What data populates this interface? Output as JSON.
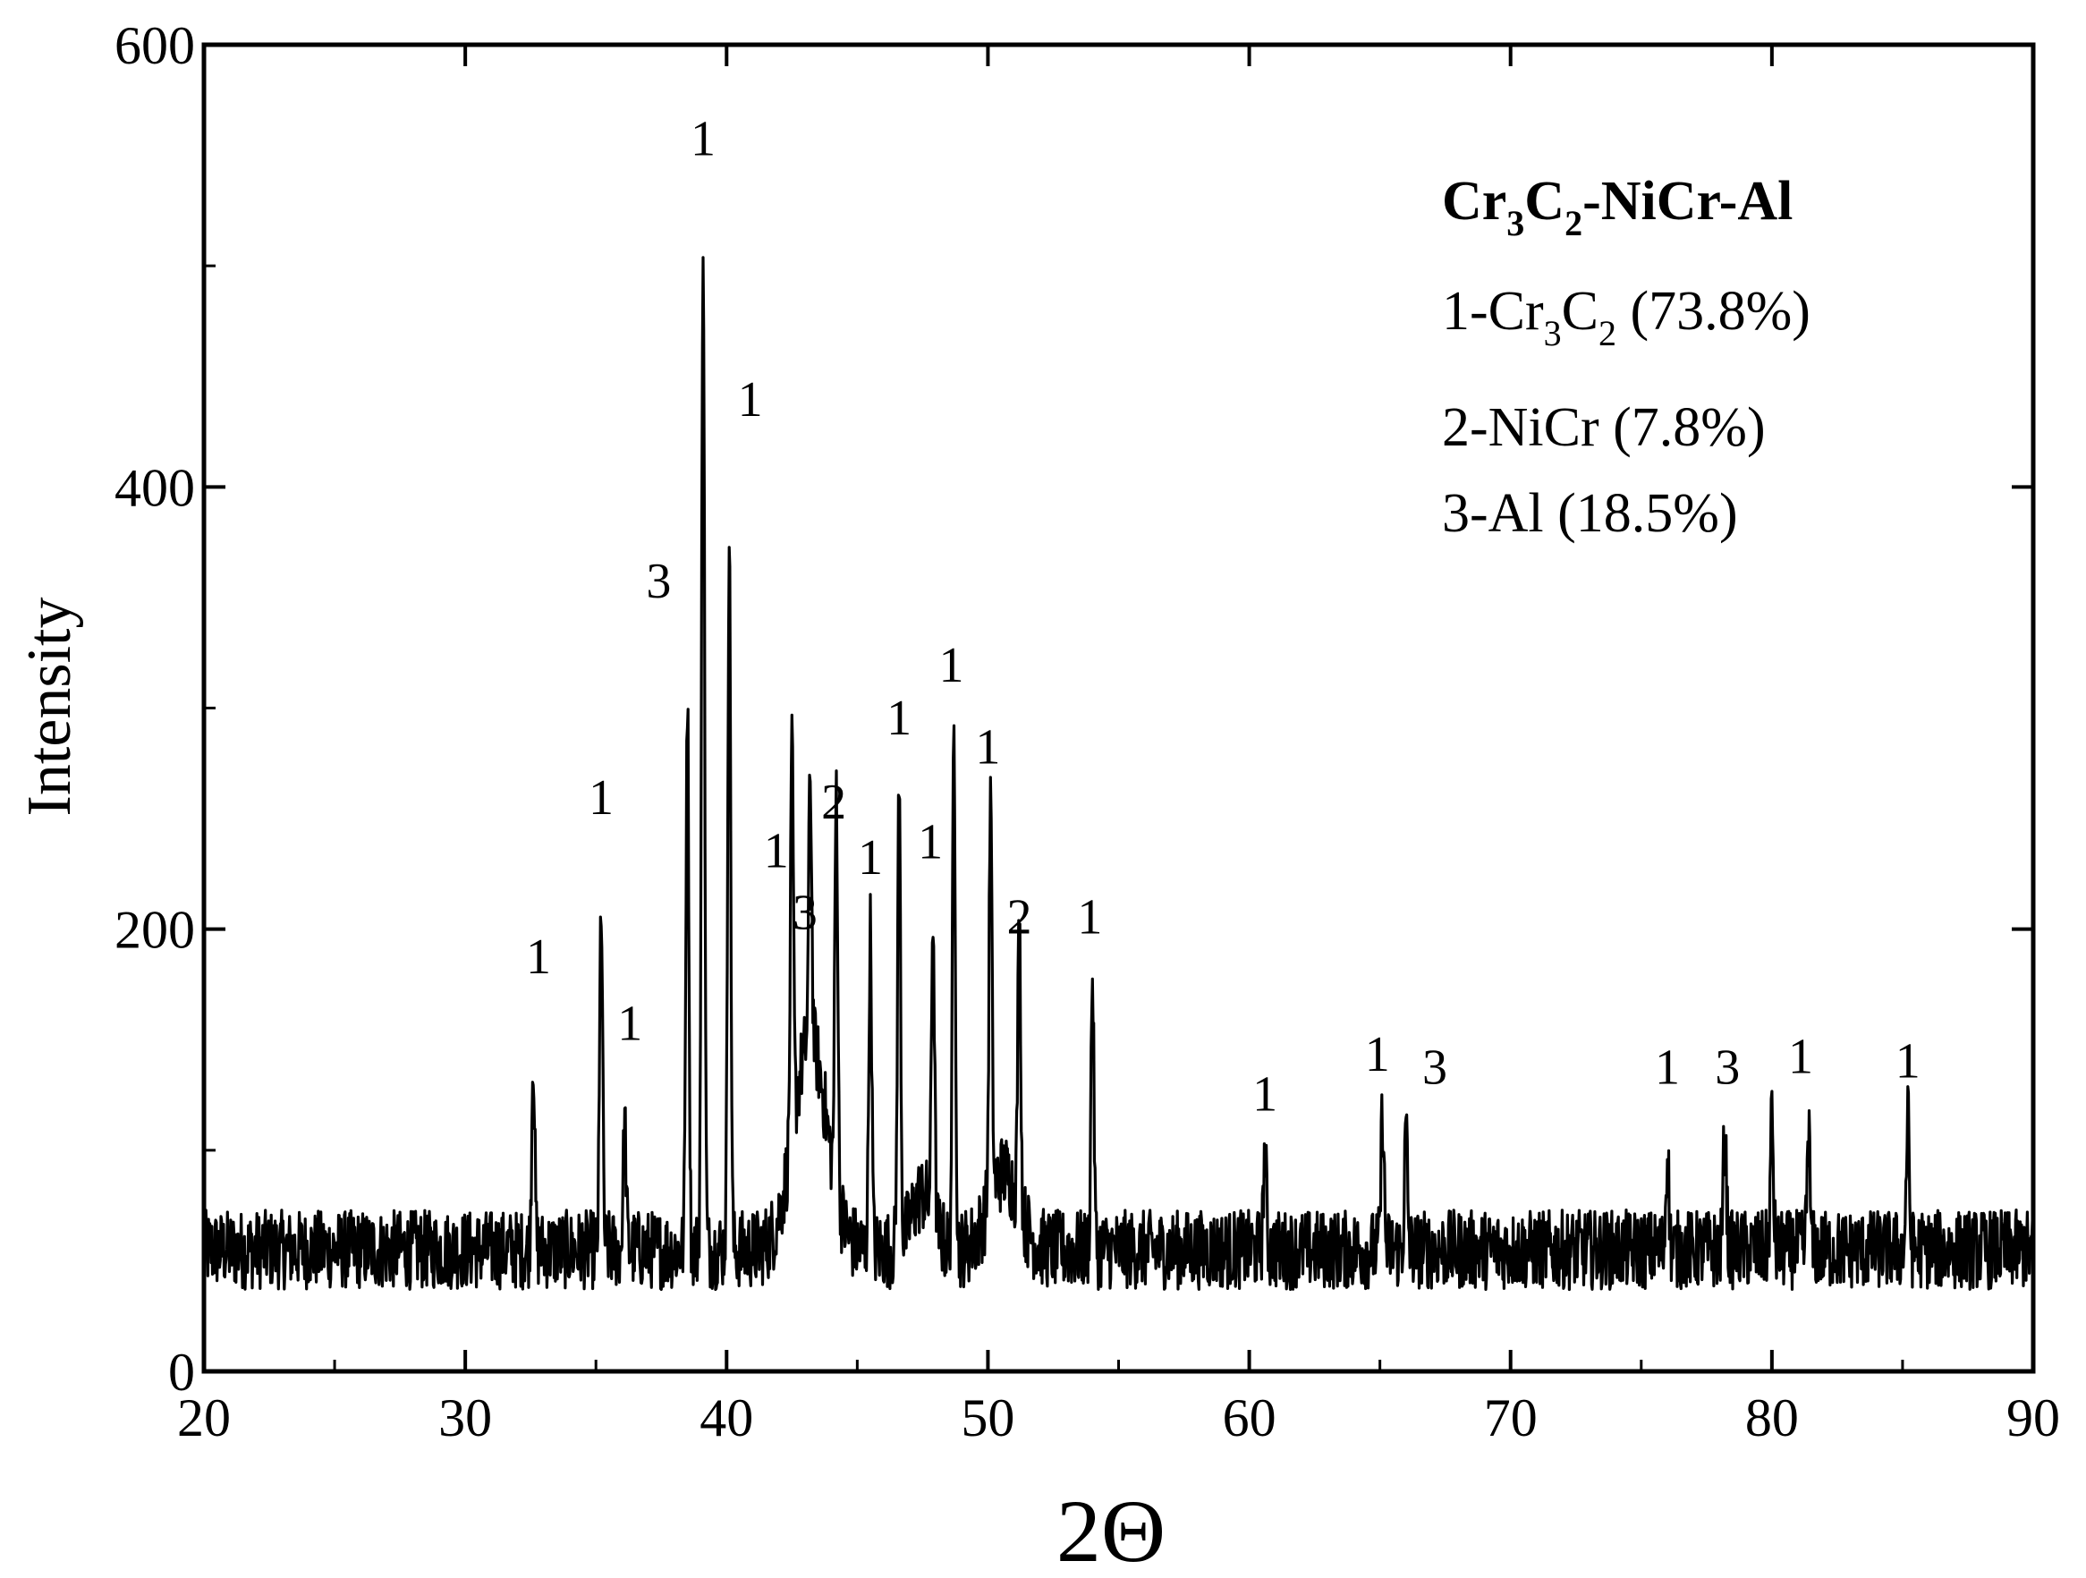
{
  "chart_data": {
    "type": "line",
    "title": "",
    "xlabel": "2Θ",
    "ylabel": "Intensity",
    "xlim": [
      20,
      90
    ],
    "ylim": [
      0,
      600
    ],
    "x_ticks": [
      "20",
      "30",
      "40",
      "50",
      "60",
      "70",
      "80",
      "90"
    ],
    "y_ticks": [
      "0",
      "200",
      "400",
      "600"
    ],
    "grid": false,
    "legend_placement": "top-right",
    "legend": {
      "title": {
        "a": "Cr",
        "s1": "3",
        "b": "C",
        "s2": "2",
        "c": "-NiCr-Al"
      },
      "entries": [
        {
          "a": "1-Cr",
          "s1": "3",
          "b": "C",
          "s2": "2",
          "c": " (73.8%)"
        },
        {
          "a": "2-NiCr (7.8%)"
        },
        {
          "a": "3-Al (18.5%)"
        }
      ]
    },
    "baseline": 55,
    "noise_amplitude": 18,
    "series": [
      {
        "color": "#000000",
        "peaks": [
          {
            "x": 32.6,
            "y": 145,
            "label": "1"
          },
          {
            "x": 35.2,
            "y": 212,
            "label": "1"
          },
          {
            "x": 36.1,
            "y": 112,
            "label": "1"
          },
          {
            "x": 38.5,
            "y": 308,
            "label": "3"
          },
          {
            "x": 39.1,
            "y": 520,
            "label": "1"
          },
          {
            "x": 40.1,
            "y": 380,
            "label": "1"
          },
          {
            "x": 42.5,
            "y": 228,
            "label": "1"
          },
          {
            "x": 43.2,
            "y": 175,
            "label": "3"
          },
          {
            "x": 44.2,
            "y": 238,
            "label": "2"
          },
          {
            "x": 45.5,
            "y": 200,
            "label": "1"
          },
          {
            "x": 46.6,
            "y": 265,
            "label": "1"
          },
          {
            "x": 47.9,
            "y": 192,
            "label": "1"
          },
          {
            "x": 48.7,
            "y": 290,
            "label": "1"
          },
          {
            "x": 50.1,
            "y": 237,
            "label": "1"
          },
          {
            "x": 51.2,
            "y": 185,
            "label": "2"
          },
          {
            "x": 54.0,
            "y": 180,
            "label": "1"
          },
          {
            "x": 60.6,
            "y": 100,
            "label": "1"
          },
          {
            "x": 65.1,
            "y": 118,
            "label": "1"
          },
          {
            "x": 66.0,
            "y": 110,
            "label": "3"
          },
          {
            "x": 76.0,
            "y": 100,
            "label": "1"
          },
          {
            "x": 78.2,
            "y": 112,
            "label": "3"
          },
          {
            "x": 80.0,
            "y": 115,
            "label": "1"
          },
          {
            "x": 81.4,
            "y": 110,
            "label": "1"
          },
          {
            "x": 85.2,
            "y": 115,
            "label": "1"
          }
        ],
        "humps": [
          {
            "x": 43.2,
            "height": 95,
            "width": 0.9
          },
          {
            "x": 50.6,
            "height": 35,
            "width": 0.8
          },
          {
            "x": 47.5,
            "height": 25,
            "width": 0.6
          }
        ]
      }
    ],
    "peak_label_positions": [
      {
        "x": 32.8,
        "y": 180,
        "label": "1"
      },
      {
        "x": 35.2,
        "y": 252,
        "label": "1"
      },
      {
        "x": 36.3,
        "y": 150,
        "label": "1"
      },
      {
        "x": 37.4,
        "y": 350,
        "label": "3"
      },
      {
        "x": 39.1,
        "y": 550,
        "label": "1"
      },
      {
        "x": 40.9,
        "y": 432,
        "label": "1"
      },
      {
        "x": 41.9,
        "y": 228,
        "label": "1"
      },
      {
        "x": 43.0,
        "y": 200,
        "label": "3"
      },
      {
        "x": 44.1,
        "y": 250,
        "label": "2"
      },
      {
        "x": 45.5,
        "y": 225,
        "label": "1"
      },
      {
        "x": 46.6,
        "y": 288,
        "label": "1"
      },
      {
        "x": 47.8,
        "y": 232,
        "label": "1"
      },
      {
        "x": 48.6,
        "y": 312,
        "label": "1"
      },
      {
        "x": 50.0,
        "y": 275,
        "label": "1"
      },
      {
        "x": 51.2,
        "y": 198,
        "label": "2"
      },
      {
        "x": 53.9,
        "y": 198,
        "label": "1"
      },
      {
        "x": 60.6,
        "y": 118,
        "label": "1"
      },
      {
        "x": 64.9,
        "y": 136,
        "label": "1"
      },
      {
        "x": 67.1,
        "y": 130,
        "label": "3"
      },
      {
        "x": 76.0,
        "y": 130,
        "label": "1"
      },
      {
        "x": 78.3,
        "y": 130,
        "label": "3"
      },
      {
        "x": 81.1,
        "y": 135,
        "label": "1"
      },
      {
        "x": 85.2,
        "y": 133,
        "label": "1"
      }
    ]
  }
}
